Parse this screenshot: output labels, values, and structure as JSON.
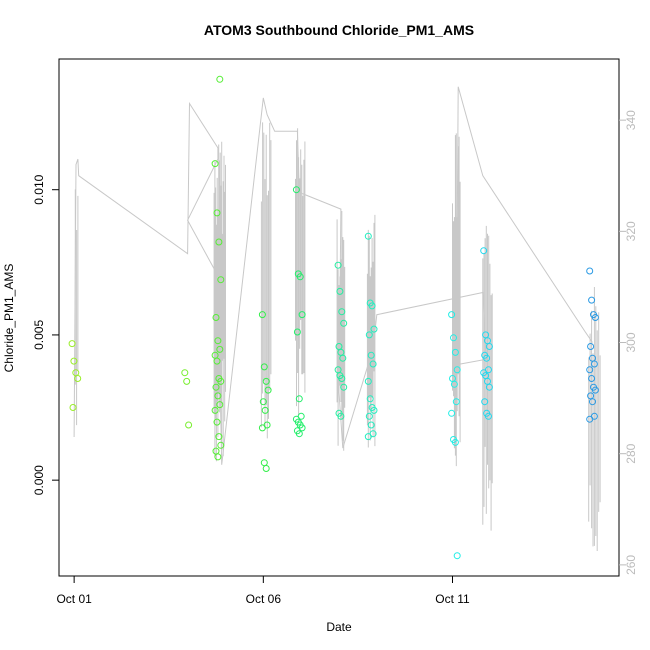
{
  "chart_data": {
    "type": "scatter",
    "title": "ATOM3 Southbound Chloride_PM1_AMS",
    "xlabel": "Date",
    "ylabel": "Chloride_PM1_AMS",
    "x_ticks": [
      {
        "value": 0,
        "label": "Oct 01"
      },
      {
        "value": 5,
        "label": "Oct 06"
      },
      {
        "value": 10,
        "label": "Oct 11"
      }
    ],
    "y_ticks": [
      {
        "value": 0.0,
        "label": "0.000"
      },
      {
        "value": 0.005,
        "label": "0.005"
      },
      {
        "value": 0.01,
        "label": "0.010"
      }
    ],
    "y2_ticks": [
      {
        "value": 260,
        "label": "260"
      },
      {
        "value": 280,
        "label": "280"
      },
      {
        "value": 300,
        "label": "300"
      },
      {
        "value": 320,
        "label": "320"
      },
      {
        "value": 340,
        "label": "340"
      }
    ],
    "xlim": [
      -0.4,
      14.4
    ],
    "ylim": [
      -0.0033,
      0.0145
    ],
    "y2lim": [
      258,
      351
    ],
    "colors": {
      "axis": "#000000",
      "secondary_line": "#c8c8c8",
      "secondary_axis": "#bbbbbb"
    },
    "point_groups": [
      {
        "x": 0.02,
        "color": "#9aee2a",
        "y": [
          0.0047,
          0.0041,
          0.0037,
          0.0035,
          0.0025
        ]
      },
      {
        "x": 3.0,
        "color": "#79ee2e",
        "y": [
          0.0037,
          0.0034,
          0.0019
        ]
      },
      {
        "x": 3.8,
        "color": "#55ee35",
        "y": [
          0.0109,
          0.0092,
          0.0082,
          0.0069,
          0.0056,
          0.0048,
          0.0045,
          0.0043,
          0.0041,
          0.0035,
          0.0034,
          0.0032,
          0.0029,
          0.0026,
          0.0024,
          0.002,
          0.0015,
          0.0012,
          0.001,
          0.0008,
          0.0138
        ]
      },
      {
        "x": 5.05,
        "color": "#33ee4a",
        "y": [
          0.0057,
          0.0039,
          0.0034,
          0.0031,
          0.0027,
          0.0024,
          0.0019,
          0.0018,
          0.0006,
          0.0004
        ]
      },
      {
        "x": 5.95,
        "color": "#22ee6a",
        "y": [
          0.01,
          0.0071,
          0.007,
          0.0057,
          0.0051,
          0.0028,
          0.0022,
          0.0021,
          0.002,
          0.0019,
          0.0018,
          0.0017,
          0.0016
        ]
      },
      {
        "x": 7.05,
        "color": "#22eea0",
        "y": [
          0.0074,
          0.0065,
          0.0058,
          0.0054,
          0.0046,
          0.0044,
          0.0042,
          0.0038,
          0.0036,
          0.0035,
          0.0032,
          0.0023,
          0.0022
        ]
      },
      {
        "x": 7.85,
        "color": "#22eec0",
        "y": [
          0.0084,
          0.0061,
          0.006,
          0.0052,
          0.005,
          0.0043,
          0.004,
          0.0034,
          0.0028,
          0.0025,
          0.0024,
          0.0022,
          0.0019,
          0.0016,
          0.0015
        ]
      },
      {
        "x": 10.05,
        "color": "#22eee6",
        "y": [
          0.0057,
          0.0049,
          0.0044,
          0.0038,
          0.0035,
          0.0033,
          0.0027,
          0.0023,
          0.0014,
          0.0013,
          -0.0026
        ]
      },
      {
        "x": 10.9,
        "color": "#22d8ee",
        "y": [
          0.0079,
          0.005,
          0.0048,
          0.0046,
          0.0043,
          0.0042,
          0.0038,
          0.0037,
          0.0036,
          0.0034,
          0.0032,
          0.0027,
          0.0023,
          0.0022
        ]
      },
      {
        "x": 13.7,
        "color": "#2a9ae4",
        "y": [
          0.0072,
          0.0062,
          0.0057,
          0.0056,
          0.0046,
          0.0042,
          0.004,
          0.0038,
          0.0035,
          0.0032,
          0.0031,
          0.0029,
          0.0027,
          0.0022,
          0.0021
        ]
      }
    ],
    "secondary_line": [
      [
        0.0,
        283
      ],
      [
        0.05,
        332
      ],
      [
        0.1,
        333
      ],
      [
        0.12,
        330
      ],
      [
        3.0,
        316
      ],
      [
        3.05,
        343
      ],
      [
        3.8,
        335
      ],
      [
        3.8,
        333
      ],
      [
        3.0,
        322
      ],
      [
        3.8,
        312
      ],
      [
        3.9,
        278
      ],
      [
        5.0,
        344
      ],
      [
        5.1,
        341
      ],
      [
        5.3,
        338
      ],
      [
        5.9,
        338
      ],
      [
        5.95,
        327
      ],
      [
        7.05,
        324
      ],
      [
        7.0,
        291
      ],
      [
        7.1,
        281
      ],
      [
        7.9,
        299
      ],
      [
        8.0,
        305
      ],
      [
        10.8,
        309
      ],
      [
        10.9,
        297
      ],
      [
        10.1,
        296
      ],
      [
        10.15,
        346
      ],
      [
        10.8,
        330
      ],
      [
        13.5,
        302
      ],
      [
        13.7,
        300
      ]
    ],
    "spike_clusters": [
      {
        "x0": 3.7,
        "x1": 4.0,
        "ymin": 277,
        "ymax": 337,
        "n": 16
      },
      {
        "x0": 4.95,
        "x1": 5.2,
        "ymin": 281,
        "ymax": 344,
        "n": 9
      },
      {
        "x0": 5.85,
        "x1": 6.1,
        "ymin": 286,
        "ymax": 340,
        "n": 10
      },
      {
        "x0": 6.95,
        "x1": 7.15,
        "ymin": 277,
        "ymax": 324,
        "n": 9
      },
      {
        "x0": 7.75,
        "x1": 7.95,
        "ymin": 281,
        "ymax": 325,
        "n": 9
      },
      {
        "x0": 10.0,
        "x1": 10.2,
        "ymin": 276,
        "ymax": 338,
        "n": 9
      },
      {
        "x0": 10.8,
        "x1": 11.05,
        "ymin": 266,
        "ymax": 321,
        "n": 9
      },
      {
        "x0": 13.6,
        "x1": 13.9,
        "ymin": 262,
        "ymax": 311,
        "n": 9
      },
      {
        "x0": 0.03,
        "x1": 0.1,
        "ymin": 283,
        "ymax": 334,
        "n": 3
      }
    ]
  }
}
